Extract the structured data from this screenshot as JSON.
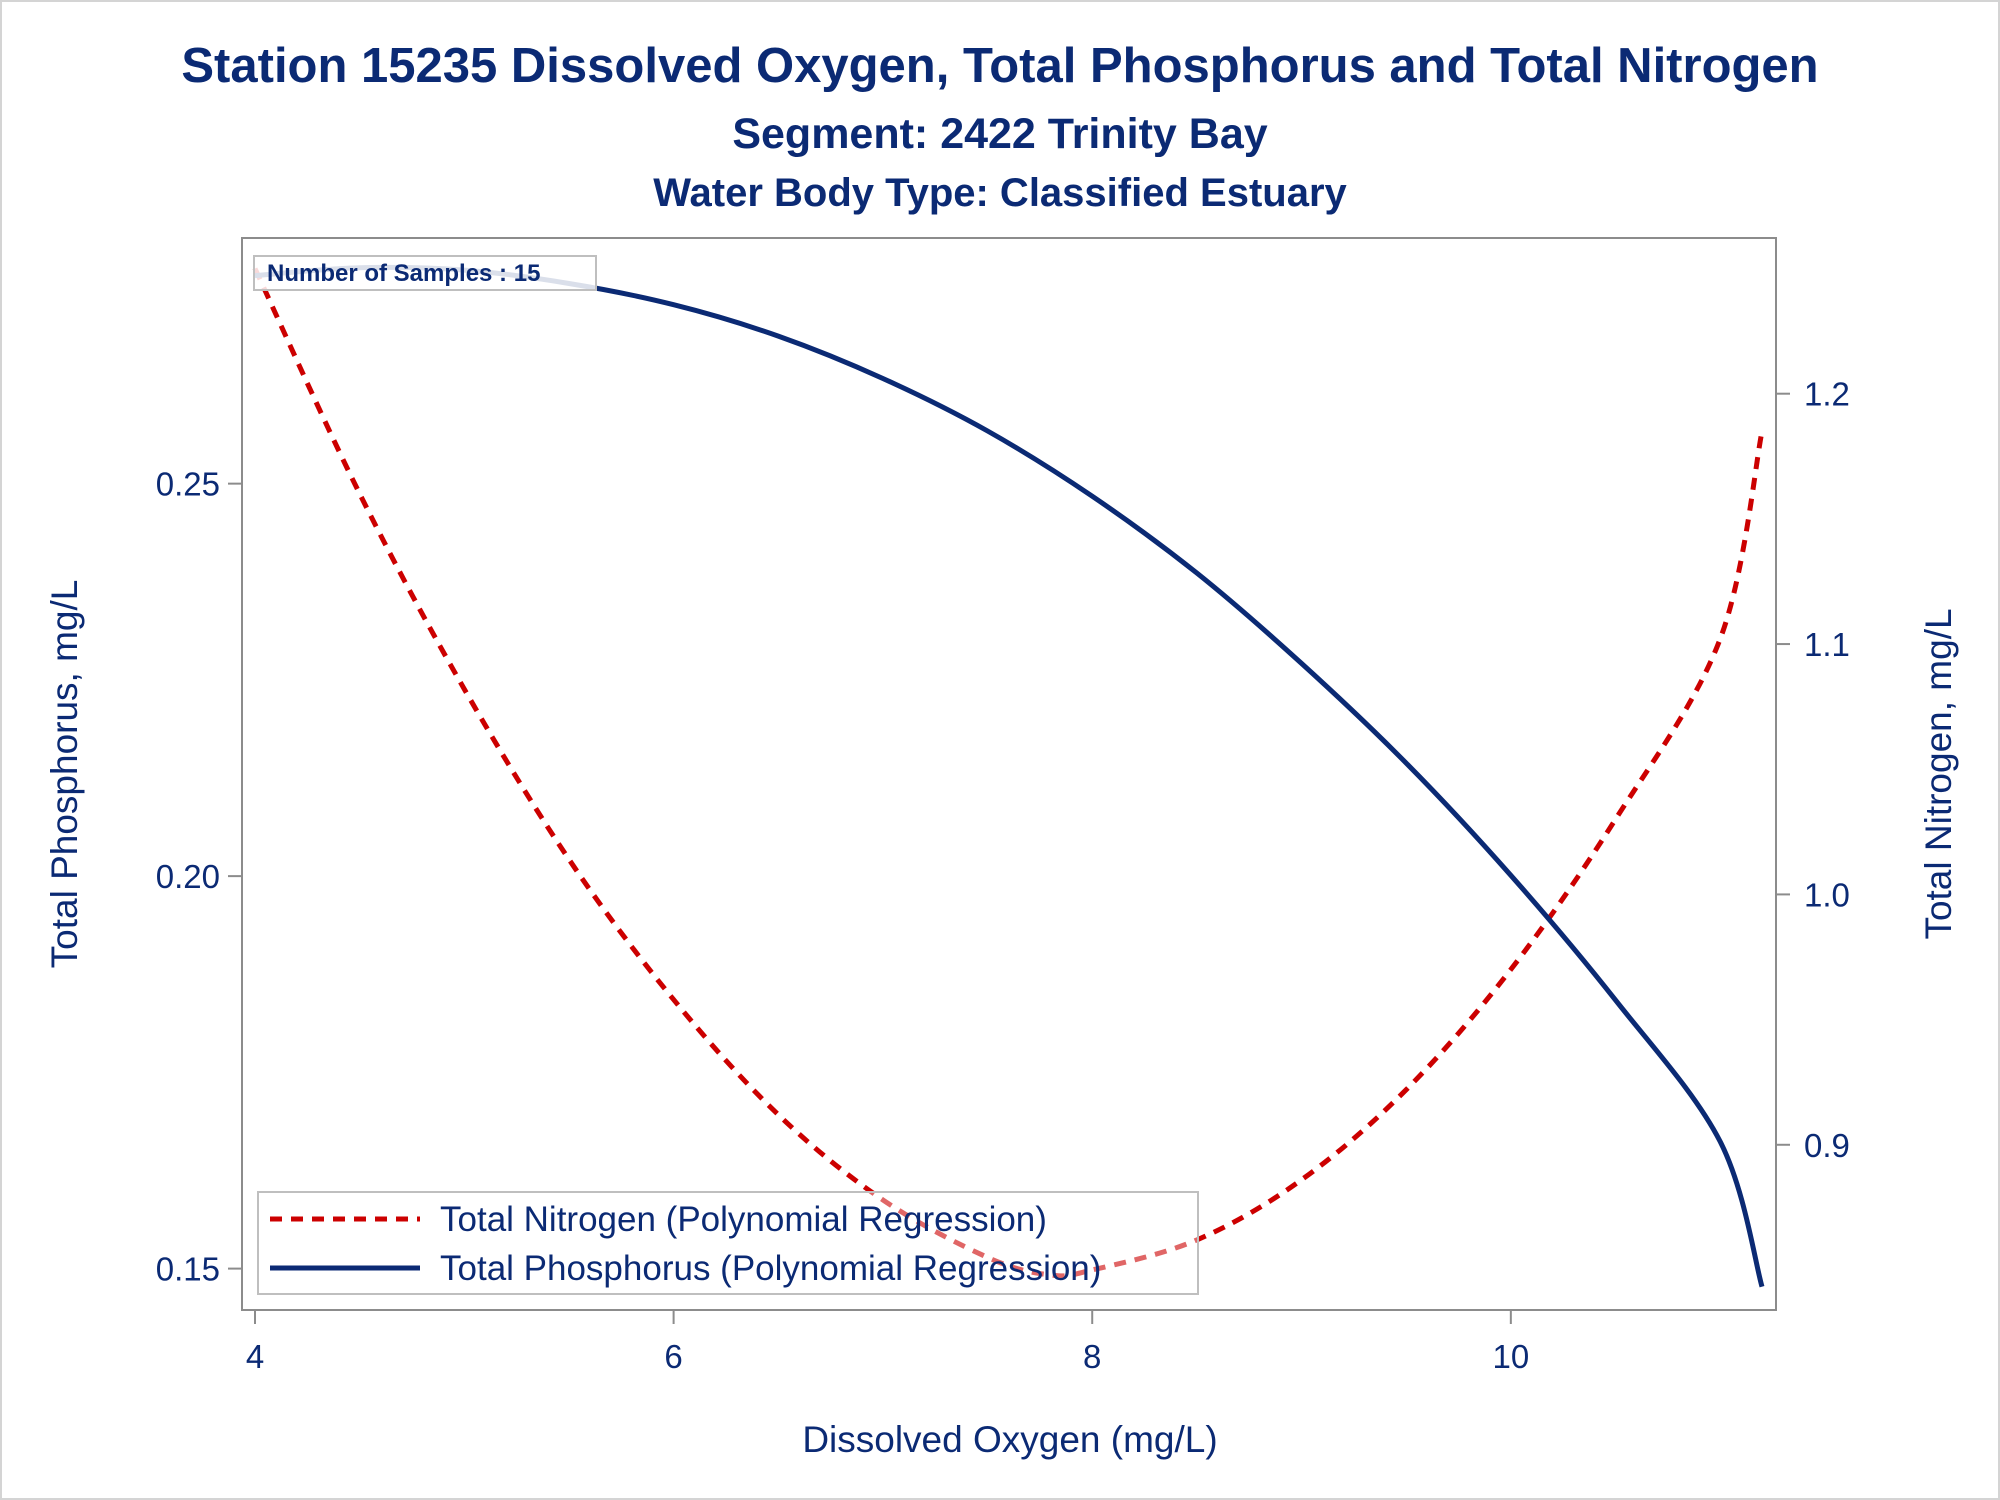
{
  "titles": {
    "main": "Station 15235  Dissolved Oxygen, Total Phosphorus and Total Nitrogen",
    "segment": "Segment: 2422  Trinity Bay",
    "water_body": "Water Body Type: Classified Estuary"
  },
  "inset_label": "Number of Samples : 15",
  "colors": {
    "nitrogen": "#cc0000",
    "phosphorus": "#0b2a74",
    "text": "#0b2a74",
    "axis": "#8c8c8c"
  },
  "chart_data": {
    "type": "line",
    "title": "Station 15235  Dissolved Oxygen, Total Phosphorus and Total Nitrogen",
    "xlabel": "Dissolved Oxygen (mg/L)",
    "ylabel_left": "Total Phosphorus, mg/L",
    "ylabel_right": "Total Nitrogen, mg/L",
    "xlim": [
      4.0,
      11.2
    ],
    "ylim_left": [
      0.146,
      0.279
    ],
    "ylim_right": [
      0.838,
      1.255
    ],
    "x_ticks": [
      "4",
      "6",
      "8",
      "10"
    ],
    "x_tick_values": [
      4,
      6,
      8,
      10
    ],
    "y_left_ticks": [
      "0.15",
      "0.20",
      "0.25"
    ],
    "y_left_tick_values": [
      0.15,
      0.2,
      0.25
    ],
    "y_right_ticks": [
      "0.9",
      "1.0",
      "1.1",
      "1.2"
    ],
    "y_right_tick_values": [
      0.9,
      1.0,
      1.1,
      1.2
    ],
    "legend_position": "bottom-left",
    "series": [
      {
        "name": "Total Nitrogen (Polynomial Regression)",
        "axis": "right",
        "style": "dashed",
        "x": [
          4.0,
          4.5,
          5.0,
          5.5,
          6.0,
          6.5,
          7.0,
          7.5,
          7.8,
          8.0,
          8.5,
          9.0,
          9.5,
          10.0,
          10.5,
          11.0,
          11.2
        ],
        "y": [
          1.25,
          1.16,
          1.082,
          1.014,
          0.958,
          0.912,
          0.878,
          0.855,
          0.848,
          0.85,
          0.862,
          0.886,
          0.922,
          0.97,
          1.03,
          1.102,
          1.185
        ]
      },
      {
        "name": "Total Phosphorus (Polynomial Regression)",
        "axis": "left",
        "style": "solid",
        "x": [
          4.0,
          4.5,
          5.0,
          5.5,
          6.0,
          6.5,
          7.0,
          7.5,
          8.0,
          8.5,
          9.0,
          9.5,
          10.0,
          10.5,
          11.0,
          11.2
        ],
        "y": [
          0.2765,
          0.2775,
          0.2772,
          0.2755,
          0.2728,
          0.2688,
          0.2634,
          0.2567,
          0.2484,
          0.2386,
          0.2271,
          0.2144,
          0.2001,
          0.1842,
          0.1662,
          0.1477
        ]
      }
    ]
  }
}
